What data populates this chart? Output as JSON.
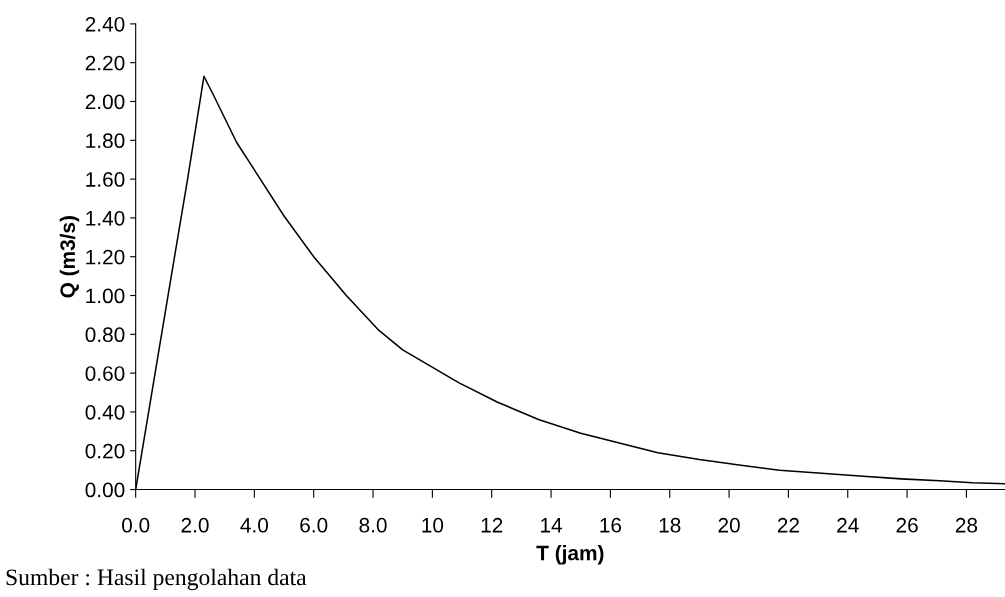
{
  "chart_data": {
    "type": "line",
    "xlabel": "T (jam)",
    "ylabel": "Q (m3/s)",
    "annotations": [
      "Sumber : Hasil pengolahan data"
    ],
    "x": [
      0,
      0.6,
      1.2,
      1.75,
      2.3,
      2.6,
      3.4,
      4.2,
      5.0,
      6.0,
      7.1,
      8.2,
      9.0,
      10.9,
      12.2,
      13.6,
      15.0,
      16.3,
      17.6,
      19.0,
      20.4,
      21.7,
      23.0,
      24.4,
      25.8,
      27.1,
      28.2,
      29.3
    ],
    "series": [
      {
        "color": "#000000",
        "values": [
          0,
          0.55,
          1.1,
          1.6,
          2.13,
          2.04,
          1.79,
          1.6,
          1.41,
          1.2,
          1.0,
          0.82,
          0.72,
          0.55,
          0.45,
          0.36,
          0.29,
          0.24,
          0.19,
          0.155,
          0.125,
          0.1,
          0.085,
          0.07,
          0.055,
          0.045,
          0.035,
          0.03
        ]
      }
    ],
    "xlim": [
      0,
      29.3
    ],
    "ylim": [
      0,
      2.4
    ],
    "xticks": [
      {
        "value": 0,
        "label": "0.0"
      },
      {
        "value": 2,
        "label": "2.0"
      },
      {
        "value": 4,
        "label": "4.0"
      },
      {
        "value": 6,
        "label": "6.0"
      },
      {
        "value": 8,
        "label": "8.0"
      },
      10,
      12,
      14,
      16,
      18,
      20,
      22,
      24,
      26,
      28
    ],
    "yticks": [
      {
        "value": 0,
        "label": "0.00"
      },
      {
        "value": 0.2,
        "label": "0.20"
      },
      {
        "value": 0.4,
        "label": "0.40"
      },
      {
        "value": 0.6,
        "label": "0.60"
      },
      {
        "value": 0.8,
        "label": "0.80"
      },
      {
        "value": 1.0,
        "label": "1.00"
      },
      {
        "value": 1.2,
        "label": "1.20"
      },
      {
        "value": 1.4,
        "label": "1.40"
      },
      {
        "value": 1.6,
        "label": "1.60"
      },
      {
        "value": 1.8,
        "label": "1.80"
      },
      {
        "value": 2.0,
        "label": "2.00"
      },
      {
        "value": 2.2,
        "label": "2.20"
      },
      {
        "value": 2.4,
        "label": "2.40"
      }
    ],
    "grid": false,
    "legend": false,
    "marker": "none",
    "line_style": "solid"
  }
}
